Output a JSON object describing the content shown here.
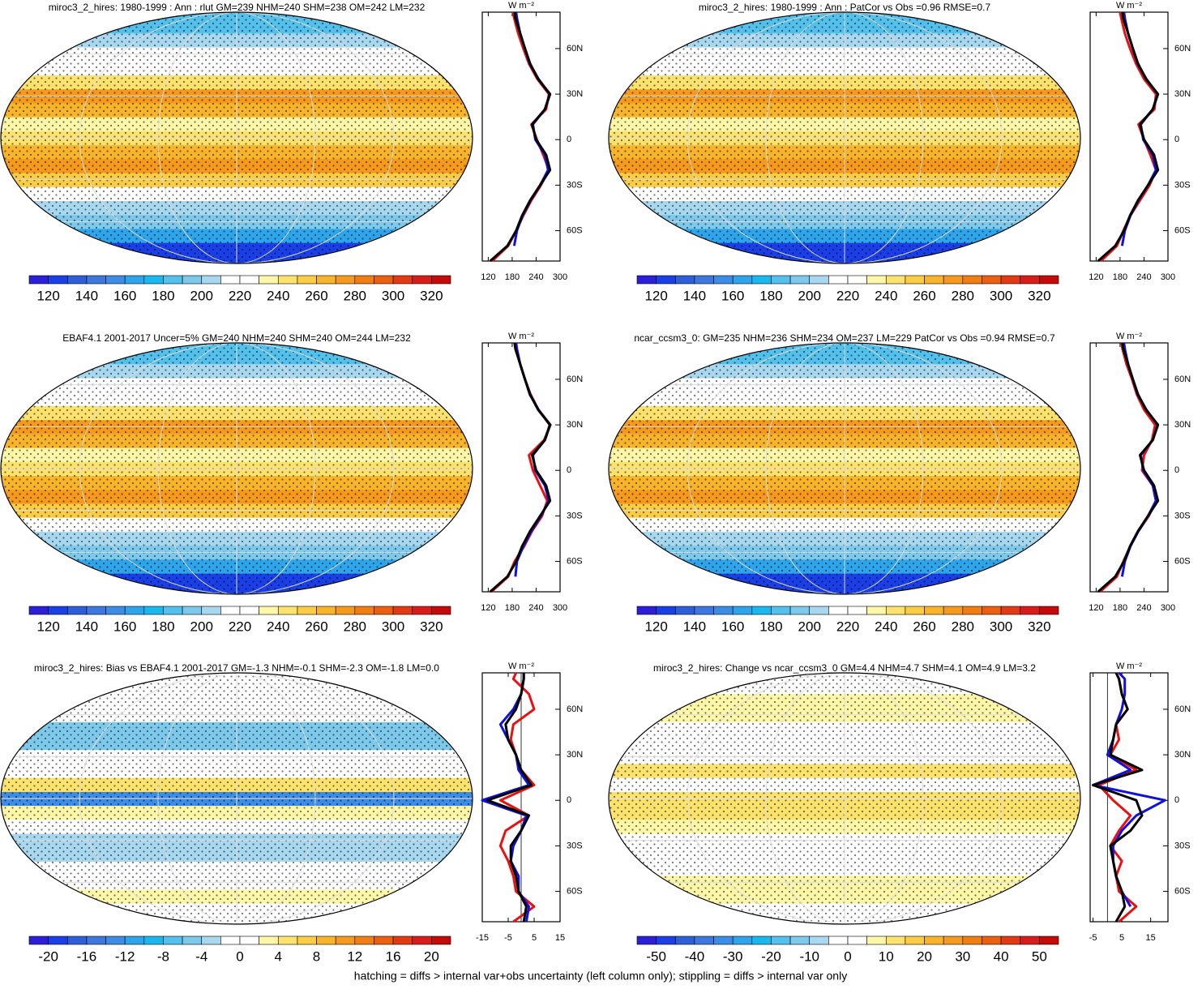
{
  "colorbar_colors": [
    "#2c1fd8",
    "#1a3fe6",
    "#2f5fd8",
    "#3e77dd",
    "#3d8de6",
    "#2ea4ea",
    "#1ab8ee",
    "#53c1ec",
    "#7dc9ec",
    "#a8d8f0",
    "#ffffff",
    "#ffffff",
    "#fff7a8",
    "#fde36e",
    "#fbcd45",
    "#f8b52b",
    "#f59a1c",
    "#f07e13",
    "#ea5f10",
    "#e23a14",
    "#d81c1c",
    "#c50a0a"
  ],
  "footer": "hatching = diffs > internal var+obs uncertainty (left column only); stippling = diffs > internal var only",
  "panels": [
    {
      "title": "miroc3_2_hires: 1980-1999 : Ann : rlut GM=239 NHM=240 SHM=238 OM=242 LM=232",
      "colorbar": {
        "ticks": [
          120,
          140,
          160,
          180,
          200,
          220,
          240,
          260,
          280,
          300,
          320
        ]
      },
      "profile": {
        "unit": "W m⁻²",
        "xlim": [
          105,
          300
        ],
        "xticks": [
          120,
          180,
          240,
          300
        ],
        "ylim": [
          -80,
          84
        ],
        "yticks": [
          {
            "value": 60,
            "label": "60N"
          },
          {
            "value": 30,
            "label": "30N"
          },
          0,
          {
            "value": -30,
            "label": "30S"
          },
          {
            "value": -60,
            "label": "60S"
          }
        ],
        "zero_line": false,
        "lat": [
          -80,
          -70,
          -60,
          -50,
          -40,
          -30,
          -20,
          -10,
          0,
          10,
          20,
          30,
          40,
          50,
          60,
          70,
          80,
          84
        ],
        "series": [
          {
            "color": "#e81010",
            "values": [
              130,
              170,
              190,
              208,
              228,
              252,
              272,
              258,
              242,
              228,
              265,
              272,
              243,
              222,
              208,
              195,
              185,
              182
            ]
          },
          {
            "color": "#1010e0",
            "values": [
              null,
              185,
              192,
              206,
              226,
              250,
              270,
              262,
              238,
              232,
              262,
              274,
              246,
              224,
              212,
              200,
              192,
              190
            ]
          },
          {
            "color": "#000000",
            "values": [
              125,
              168,
              190,
              205,
              225,
              250,
              275,
              265,
              240,
              230,
              262,
              275,
              245,
              225,
              212,
              200,
              188,
              186
            ]
          }
        ]
      }
    },
    {
      "title": "miroc3_2_hires: 1980-1999 : Ann : PatCor vs Obs =0.96 RMSE=0.7",
      "colorbar": {
        "ticks": [
          120,
          140,
          160,
          180,
          200,
          220,
          240,
          260,
          280,
          300,
          320
        ]
      },
      "profile": {
        "unit": "W m⁻²",
        "xlim": [
          105,
          300
        ],
        "xticks": [
          120,
          180,
          240,
          300
        ],
        "ylim": [
          -80,
          84
        ],
        "yticks": [
          {
            "value": 60,
            "label": "60N"
          },
          {
            "value": 30,
            "label": "30N"
          },
          0,
          {
            "value": -30,
            "label": "30S"
          },
          {
            "value": -60,
            "label": "60S"
          }
        ],
        "zero_line": false,
        "lat": [
          -80,
          -70,
          -60,
          -50,
          -40,
          -30,
          -20,
          -10,
          0,
          10,
          20,
          30,
          40,
          50,
          60,
          70,
          80,
          84
        ],
        "series": [
          {
            "color": "#e81010",
            "values": [
              132,
              172,
              188,
              206,
              230,
              254,
              270,
              256,
              240,
              226,
              266,
              270,
              240,
              220,
              205,
              192,
              183,
              180
            ]
          },
          {
            "color": "#1010e0",
            "values": [
              null,
              185,
              192,
              206,
              226,
              250,
              270,
              262,
              238,
              232,
              262,
              274,
              246,
              224,
              212,
              200,
              192,
              190
            ]
          },
          {
            "color": "#000000",
            "values": [
              125,
              168,
              190,
              205,
              225,
              250,
              275,
              265,
              240,
              230,
              262,
              275,
              245,
              225,
              212,
              200,
              188,
              186
            ]
          }
        ]
      }
    },
    {
      "title": "EBAF4.1 2001-2017 Uncer=5% GM=240 NHM=240 SHM=240 OM=244 LM=232",
      "colorbar": {
        "ticks": [
          120,
          140,
          160,
          180,
          200,
          220,
          240,
          260,
          280,
          300,
          320
        ]
      },
      "profile": {
        "unit": "W m⁻²",
        "xlim": [
          105,
          300
        ],
        "xticks": [
          120,
          180,
          240,
          300
        ],
        "ylim": [
          -80,
          84
        ],
        "yticks": [
          {
            "value": 60,
            "label": "60N"
          },
          {
            "value": 30,
            "label": "30N"
          },
          0,
          {
            "value": -30,
            "label": "30S"
          },
          {
            "value": -60,
            "label": "60S"
          }
        ],
        "zero_line": false,
        "lat": [
          -80,
          -70,
          -60,
          -50,
          -40,
          -30,
          -20,
          -10,
          0,
          10,
          20,
          30,
          40,
          50,
          60,
          70,
          80,
          84
        ],
        "series": [
          {
            "color": "#e81010",
            "values": [
              128,
              170,
              186,
              210,
              230,
              255,
              268,
              250,
              232,
              222,
              260,
              276,
              246,
              226,
              212,
              200,
              190,
              187
            ]
          },
          {
            "color": "#1010e0",
            "values": [
              null,
              188,
              192,
              208,
              228,
              252,
              272,
              262,
              238,
              232,
              262,
              274,
              246,
              224,
              212,
              200,
              192,
              190
            ]
          },
          {
            "color": "#000000",
            "values": [
              125,
              168,
              190,
              205,
              225,
              250,
              275,
              265,
              240,
              230,
              262,
              275,
              245,
              225,
              212,
              200,
              188,
              186
            ]
          }
        ]
      }
    },
    {
      "title": "ncar_ccsm3_0: GM=235 NHM=236 SHM=234 OM=237 LM=229 PatCor vs Obs =0.94 RMSE=0.7",
      "colorbar": {
        "ticks": [
          120,
          140,
          160,
          180,
          200,
          220,
          240,
          260,
          280,
          300,
          320
        ]
      },
      "profile": {
        "unit": "W m⁻²",
        "xlim": [
          105,
          300
        ],
        "xticks": [
          120,
          180,
          240,
          300
        ],
        "ylim": [
          -80,
          84
        ],
        "yticks": [
          {
            "value": 60,
            "label": "60N"
          },
          {
            "value": 30,
            "label": "30N"
          },
          0,
          {
            "value": -30,
            "label": "30S"
          },
          {
            "value": -60,
            "label": "60S"
          }
        ],
        "zero_line": false,
        "lat": [
          -80,
          -70,
          -60,
          -50,
          -40,
          -30,
          -20,
          -10,
          0,
          10,
          20,
          30,
          40,
          50,
          60,
          70,
          80,
          84
        ],
        "series": [
          {
            "color": "#e81010",
            "values": [
              130,
              172,
              188,
              206,
              226,
              252,
              270,
              262,
              235,
              240,
              260,
              268,
              240,
              222,
              210,
              196,
              186,
              184
            ]
          },
          {
            "color": "#1010e0",
            "values": [
              null,
              185,
              192,
              206,
              226,
              250,
              270,
              262,
              238,
              232,
              262,
              274,
              246,
              224,
              212,
              200,
              192,
              190
            ]
          },
          {
            "color": "#000000",
            "values": [
              125,
              168,
              190,
              205,
              225,
              250,
              275,
              265,
              240,
              230,
              262,
              275,
              245,
              225,
              212,
              200,
              188,
              186
            ]
          }
        ]
      }
    },
    {
      "title": "miroc3_2_hires: Bias vs EBAF4.1 2001-2017 GM=-1.3 NHM=-0.1 SHM=-2.3 OM=-1.8 LM=0.0",
      "colorbar": {
        "ticks": [
          -20,
          -16,
          -12,
          -8,
          -4,
          0,
          4,
          8,
          12,
          16,
          20
        ]
      },
      "profile": {
        "unit": "W m⁻²",
        "xlim": [
          -15,
          15
        ],
        "xticks": [
          -15,
          -5,
          5,
          15
        ],
        "ylim": [
          -80,
          84
        ],
        "yticks": [
          {
            "value": 60,
            "label": "60N"
          },
          {
            "value": 30,
            "label": "30N"
          },
          0,
          {
            "value": -30,
            "label": "30S"
          },
          {
            "value": -60,
            "label": "60S"
          }
        ],
        "zero_line": true,
        "lat": [
          -80,
          -70,
          -60,
          -50,
          -40,
          -30,
          -20,
          -10,
          0,
          10,
          20,
          30,
          40,
          50,
          60,
          70,
          80,
          84
        ],
        "series": [
          {
            "color": "#e81010",
            "values": [
              -3,
              5,
              -2,
              -3,
              -5,
              -8,
              -6,
              3,
              -8,
              5,
              0,
              -2,
              -4,
              -3,
              5,
              3,
              -3,
              -2
            ]
          },
          {
            "color": "#1010e0",
            "values": [
              2,
              3,
              -1,
              -1,
              -4,
              -3,
              0,
              2,
              -15,
              3,
              -1,
              -2,
              -5,
              -8,
              -3,
              0,
              1,
              1
            ]
          },
          {
            "color": "#000000",
            "values": [
              1,
              2,
              -1,
              -2,
              -4,
              -4,
              0,
              3,
              -13,
              4,
              0,
              -2,
              -5,
              -6,
              -2,
              0,
              1,
              1
            ]
          }
        ]
      }
    },
    {
      "title": "miroc3_2_hires: Change vs ncar_ccsm3_0 GM=4.4 NHM=4.7 SHM=4.1 OM=4.9 LM=3.2",
      "colorbar": {
        "ticks": [
          -50,
          -40,
          -30,
          -20,
          -10,
          0,
          10,
          20,
          30,
          40,
          50
        ]
      },
      "profile": {
        "unit": "W m⁻²",
        "xlim": [
          -6,
          21
        ],
        "xticks": [
          -5,
          5,
          15
        ],
        "ylim": [
          -80,
          84
        ],
        "yticks": [
          {
            "value": 60,
            "label": "60N"
          },
          {
            "value": 30,
            "label": "30N"
          },
          0,
          {
            "value": -30,
            "label": "30S"
          },
          {
            "value": -60,
            "label": "60S"
          }
        ],
        "zero_line": true,
        "lat": [
          -80,
          -70,
          -60,
          -50,
          -40,
          -30,
          -20,
          -10,
          0,
          10,
          20,
          30,
          40,
          50,
          60,
          70,
          80,
          84
        ],
        "series": [
          {
            "color": "#e81010",
            "values": [
              4,
              10,
              4,
              3,
              5,
              1,
              4,
              8,
              2,
              -3,
              10,
              1,
              4,
              3,
              7,
              5,
              4,
              3
            ]
          },
          {
            "color": "#1010e0",
            "values": [
              null,
              8,
              5,
              3,
              2,
              2,
              5,
              10,
              20,
              -5,
              8,
              0,
              2,
              3,
              5,
              6,
              6,
              4
            ]
          },
          {
            "color": "#000000",
            "values": [
              3,
              6,
              5,
              3,
              2,
              1,
              8,
              12,
              10,
              -5,
              12,
              1,
              2,
              3,
              7,
              5,
              4,
              3
            ]
          }
        ]
      }
    }
  ]
}
